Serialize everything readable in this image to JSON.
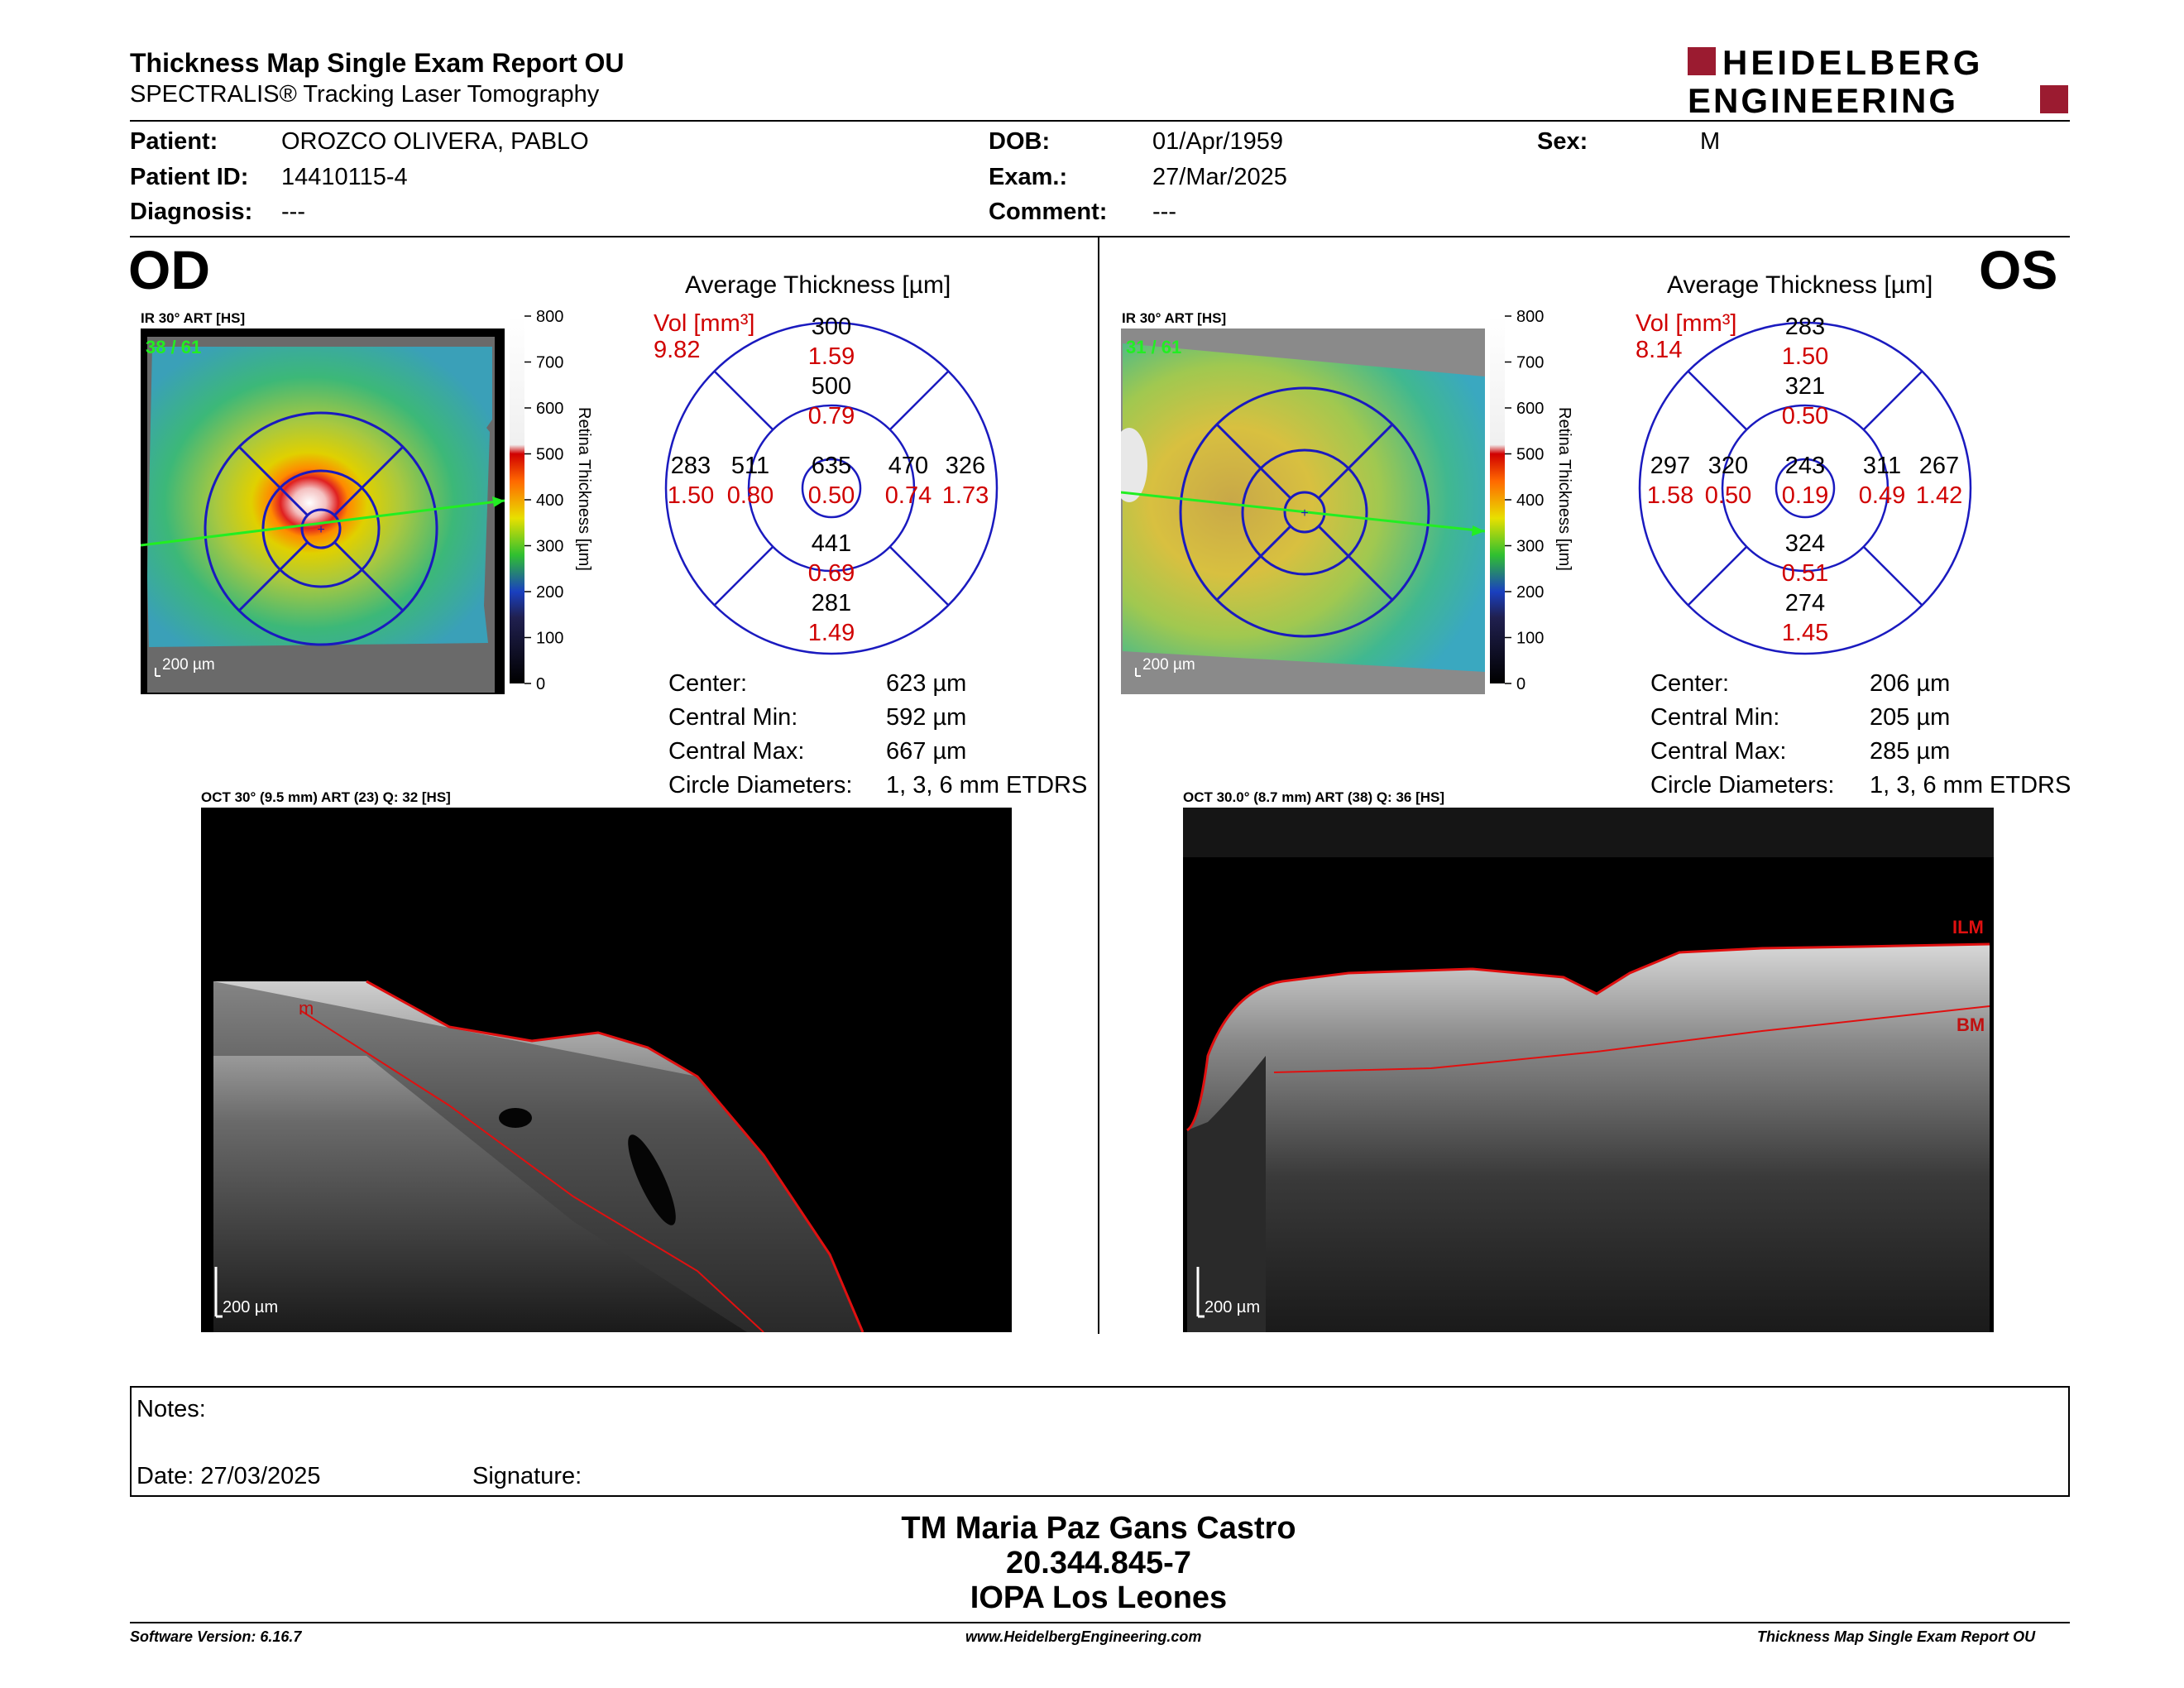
{
  "report": {
    "title": "Thickness Map Single Exam Report OU",
    "subtitle": "SPECTRALIS® Tracking Laser Tomography",
    "logo_line1": "HEIDELBERG",
    "logo_line2": "ENGINEERING"
  },
  "patient": {
    "patient_label": "Patient:",
    "patient_value": "OROZCO OLIVERA, PABLO",
    "id_label": "Patient ID:",
    "id_value": "14410115-4",
    "diag_label": "Diagnosis:",
    "diag_value": "---",
    "dob_label": "DOB:",
    "dob_value": "01/Apr/1959",
    "exam_label": "Exam.:",
    "exam_value": "27/Mar/2025",
    "comment_label": "Comment:",
    "comment_value": "---",
    "sex_label": "Sex:",
    "sex_value": "M"
  },
  "od": {
    "eye": "OD",
    "ir_label": "IR 30° ART [HS]",
    "ir_counter": "38 / 61",
    "scale": "200 µm",
    "avg_title": "Average Thickness [µm]",
    "vol_label": "Vol [mm³]",
    "vol_value": "9.82",
    "etdrs": {
      "center": {
        "t": "635",
        "v": "0.50"
      },
      "inner_sup": {
        "t": "500",
        "v": "0.79"
      },
      "inner_inf": {
        "t": "441",
        "v": "0.69"
      },
      "inner_nas": {
        "t": "511",
        "v": "0.80"
      },
      "inner_tem": {
        "t": "470",
        "v": "0.74"
      },
      "outer_sup": {
        "t": "300",
        "v": "1.59"
      },
      "outer_inf": {
        "t": "281",
        "v": "1.49"
      },
      "outer_nas": {
        "t": "283",
        "v": "1.50"
      },
      "outer_tem": {
        "t": "326",
        "v": "1.73"
      }
    },
    "stats": [
      {
        "label": "Center:",
        "value": "623 µm"
      },
      {
        "label": "Central Min:",
        "value": "592 µm"
      },
      {
        "label": "Central Max:",
        "value": "667 µm"
      },
      {
        "label": "Circle Diameters:",
        "value": "1, 3, 6 mm ETDRS"
      }
    ],
    "oct_label": "OCT 30° (9.5 mm) ART (23) Q: 32 [HS]",
    "oct_scale": "200 µm",
    "oct_marker": "m"
  },
  "os": {
    "eye": "OS",
    "ir_label": "IR 30° ART [HS]",
    "ir_counter": "31 / 61",
    "scale": "200 µm",
    "avg_title": "Average Thickness [µm]",
    "vol_label": "Vol [mm³]",
    "vol_value": "8.14",
    "etdrs": {
      "center": {
        "t": "243",
        "v": "0.19"
      },
      "inner_sup": {
        "t": "321",
        "v": "0.50"
      },
      "inner_inf": {
        "t": "324",
        "v": "0.51"
      },
      "inner_nas": {
        "t": "311",
        "v": "0.49"
      },
      "inner_tem": {
        "t": "320",
        "v": "0.50"
      },
      "outer_sup": {
        "t": "283",
        "v": "1.50"
      },
      "outer_inf": {
        "t": "274",
        "v": "1.45"
      },
      "outer_nas": {
        "t": "267",
        "v": "1.42"
      },
      "outer_tem": {
        "t": "297",
        "v": "1.58"
      }
    },
    "stats": [
      {
        "label": "Center:",
        "value": "206 µm"
      },
      {
        "label": "Central Min:",
        "value": "205 µm"
      },
      {
        "label": "Central Max:",
        "value": "285 µm"
      },
      {
        "label": "Circle Diameters:",
        "value": "1, 3, 6 mm ETDRS"
      }
    ],
    "oct_label": "OCT 30.0° (8.7 mm) ART (38) Q: 36 [HS]",
    "oct_scale": "200 µm",
    "ilm": "ILM",
    "bm": "BM"
  },
  "colorbar": {
    "title": "Retina Thickness [µm]",
    "ticks": [
      "800",
      "700",
      "600",
      "500",
      "400",
      "300",
      "200",
      "100",
      "0"
    ]
  },
  "notes": {
    "notes_label": "Notes:",
    "date_label": "Date: 27/03/2025",
    "signature_label": "Signature:"
  },
  "signature_block": {
    "name": "TM Maria Paz Gans Castro",
    "id": "20.344.845-7",
    "org": "IOPA Los Leones"
  },
  "footer": {
    "version": "Software Version: 6.16.7",
    "url": "www.HeidelbergEngineering.com",
    "report": "Thickness Map Single Exam Report OU"
  },
  "colors": {
    "accent_red": "#d00000",
    "grid_blue": "#1a1abf",
    "brand": "#9b1b30"
  }
}
